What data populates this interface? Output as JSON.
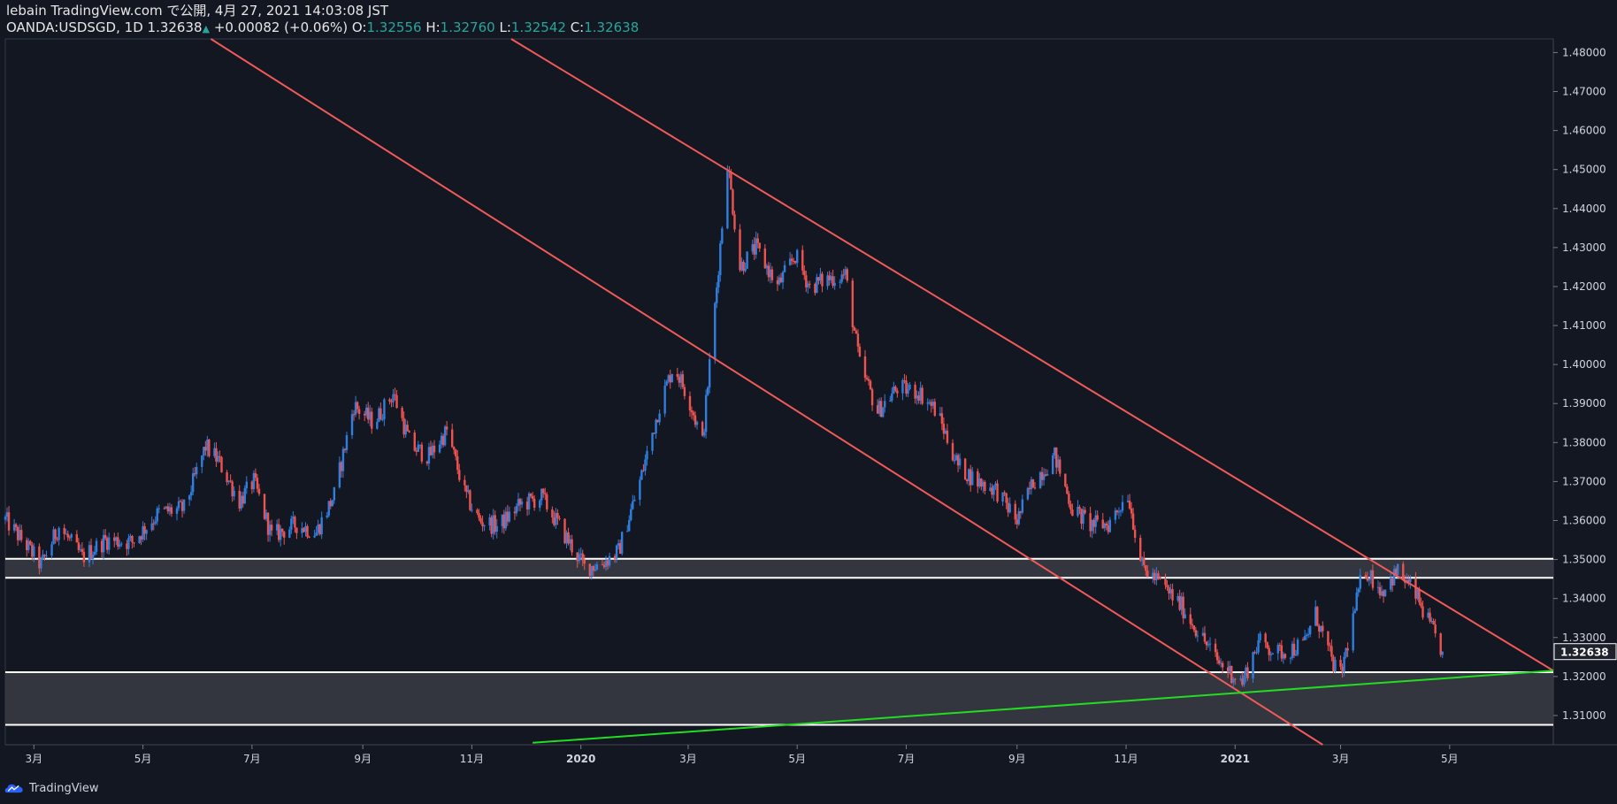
{
  "header": {
    "line1": "lebain TradingView.com で公開, 4月 27, 2021 14:03:08 JST",
    "symbol": "OANDA:USDSGD, 1D",
    "last": "1.32638",
    "change": "+0.00082 (+0.06%)",
    "o_label": "O:",
    "o_value": "1.32556",
    "h_label": "H:",
    "h_value": "1.32760",
    "l_label": "L:",
    "l_value": "1.32542",
    "c_label": "C:",
    "c_value": "1.32638"
  },
  "footer": {
    "brand": "TradingView"
  },
  "colors": {
    "background": "#131722",
    "up": "#2f7ee0",
    "down": "#ef5350",
    "channel": "#f05a58",
    "support": "#22dd22",
    "zone_fill": "#3a3c44",
    "zone_line": "#ffffff"
  },
  "chart_data": {
    "type": "candlestick",
    "symbol": "OANDA:USDSGD",
    "interval": "1D",
    "y_axis": {
      "ylim": [
        1.3025,
        1.4835
      ],
      "ticks": [
        1.31,
        1.32,
        1.33,
        1.34,
        1.35,
        1.36,
        1.37,
        1.38,
        1.39,
        1.4,
        1.41,
        1.42,
        1.43,
        1.44,
        1.45,
        1.46,
        1.47,
        1.48
      ],
      "tick_labels": [
        "1.31000",
        "1.32000",
        "1.33000",
        "1.34000",
        "1.35000",
        "1.36000",
        "1.37000",
        "1.38000",
        "1.39000",
        "1.40000",
        "1.41000",
        "1.42000",
        "1.43000",
        "1.44000",
        "1.45000",
        "1.46000",
        "1.47000",
        "1.48000"
      ],
      "last_price_label": "1.32638",
      "last_price": 1.32638
    },
    "x_axis": {
      "ticks": [
        {
          "label": "3月",
          "date": "2019-03-01",
          "bold": false
        },
        {
          "label": "5月",
          "date": "2019-05-01",
          "bold": false
        },
        {
          "label": "7月",
          "date": "2019-07-01",
          "bold": false
        },
        {
          "label": "9月",
          "date": "2019-09-01",
          "bold": false
        },
        {
          "label": "11月",
          "date": "2019-11-01",
          "bold": false
        },
        {
          "label": "2020",
          "date": "2020-01-01",
          "bold": true
        },
        {
          "label": "3月",
          "date": "2020-03-01",
          "bold": false
        },
        {
          "label": "5月",
          "date": "2020-05-01",
          "bold": false
        },
        {
          "label": "7月",
          "date": "2020-07-01",
          "bold": false
        },
        {
          "label": "9月",
          "date": "2020-09-01",
          "bold": false
        },
        {
          "label": "11月",
          "date": "2020-11-01",
          "bold": false
        },
        {
          "label": "2021",
          "date": "2021-01-01",
          "bold": true
        },
        {
          "label": "3月",
          "date": "2021-03-01",
          "bold": false
        },
        {
          "label": "5月",
          "date": "2021-05-01",
          "bold": false
        }
      ],
      "range": [
        "2019-02-13",
        "2021-06-28"
      ]
    },
    "price_path": [
      [
        "2019-02-13",
        1.3602
      ],
      [
        "2019-02-25",
        1.3535
      ],
      [
        "2019-03-05",
        1.3485
      ],
      [
        "2019-03-15",
        1.3585
      ],
      [
        "2019-03-28",
        1.3505
      ],
      [
        "2019-04-10",
        1.355
      ],
      [
        "2019-04-25",
        1.3545
      ],
      [
        "2019-05-10",
        1.362
      ],
      [
        "2019-05-24",
        1.363
      ],
      [
        "2019-06-05",
        1.379
      ],
      [
        "2019-06-12",
        1.3755
      ],
      [
        "2019-06-24",
        1.365
      ],
      [
        "2019-07-02",
        1.37
      ],
      [
        "2019-07-12",
        1.356
      ],
      [
        "2019-07-26",
        1.359
      ],
      [
        "2019-08-06",
        1.357
      ],
      [
        "2019-08-16",
        1.3665
      ],
      [
        "2019-08-27",
        1.3895
      ],
      [
        "2019-09-07",
        1.385
      ],
      [
        "2019-09-18",
        1.3925
      ],
      [
        "2019-09-28",
        1.379
      ],
      [
        "2019-10-08",
        1.3765
      ],
      [
        "2019-10-18",
        1.383
      ],
      [
        "2019-10-28",
        1.367
      ],
      [
        "2019-11-05",
        1.36
      ],
      [
        "2019-11-16",
        1.3585
      ],
      [
        "2019-11-28",
        1.364
      ],
      [
        "2019-12-10",
        1.366
      ],
      [
        "2019-12-24",
        1.3555
      ],
      [
        "2020-01-03",
        1.348
      ],
      [
        "2020-01-12",
        1.3488
      ],
      [
        "2020-01-22",
        1.352
      ],
      [
        "2020-02-03",
        1.37
      ],
      [
        "2020-02-14",
        1.3895
      ],
      [
        "2020-02-22",
        1.4
      ],
      [
        "2020-03-02",
        1.3905
      ],
      [
        "2020-03-09",
        1.38
      ],
      [
        "2020-03-17",
        1.42
      ],
      [
        "2020-03-23",
        1.452
      ],
      [
        "2020-03-30",
        1.425
      ],
      [
        "2020-04-08",
        1.43
      ],
      [
        "2020-04-20",
        1.42
      ],
      [
        "2020-04-30",
        1.428
      ],
      [
        "2020-05-08",
        1.42
      ],
      [
        "2020-05-18",
        1.422
      ],
      [
        "2020-05-28",
        1.423
      ],
      [
        "2020-06-05",
        1.4
      ],
      [
        "2020-06-15",
        1.388
      ],
      [
        "2020-06-26",
        1.394
      ],
      [
        "2020-07-08",
        1.393
      ],
      [
        "2020-07-18",
        1.388
      ],
      [
        "2020-07-30",
        1.374
      ],
      [
        "2020-08-10",
        1.37
      ],
      [
        "2020-08-20",
        1.368
      ],
      [
        "2020-09-01",
        1.36
      ],
      [
        "2020-09-10",
        1.37
      ],
      [
        "2020-09-22",
        1.3765
      ],
      [
        "2020-10-02",
        1.363
      ],
      [
        "2020-10-12",
        1.359
      ],
      [
        "2020-10-22",
        1.359
      ],
      [
        "2020-11-02",
        1.367
      ],
      [
        "2020-11-10",
        1.348
      ],
      [
        "2020-11-20",
        1.344
      ],
      [
        "2020-12-02",
        1.338
      ],
      [
        "2020-12-12",
        1.331
      ],
      [
        "2020-12-22",
        1.324
      ],
      [
        "2021-01-05",
        1.3185
      ],
      [
        "2021-01-14",
        1.329
      ],
      [
        "2021-01-25",
        1.326
      ],
      [
        "2021-02-08",
        1.328
      ],
      [
        "2021-02-15",
        1.336
      ],
      [
        "2021-02-24",
        1.324
      ],
      [
        "2021-03-01",
        1.32
      ],
      [
        "2021-03-08",
        1.335
      ],
      [
        "2021-03-14",
        1.348
      ],
      [
        "2021-03-24",
        1.342
      ],
      [
        "2021-04-02",
        1.347
      ],
      [
        "2021-04-12",
        1.341
      ],
      [
        "2021-04-20",
        1.333
      ],
      [
        "2021-04-27",
        1.32638
      ]
    ],
    "drawings": {
      "upper_channel_line": {
        "from": [
          "2019-11-23",
          1.4835
        ],
        "to": [
          "2021-06-28",
          1.3215
        ]
      },
      "lower_channel_line": {
        "from": [
          "2019-06-08",
          1.4835
        ],
        "to": [
          "2021-02-19",
          1.3025
        ]
      },
      "green_support_line": {
        "from": [
          "2019-12-05",
          1.303
        ],
        "to": [
          "2021-06-28",
          1.3215
        ]
      },
      "upper_zone": [
        1.3453,
        1.3502
      ],
      "lower_zone": [
        1.3076,
        1.3211
      ]
    }
  }
}
